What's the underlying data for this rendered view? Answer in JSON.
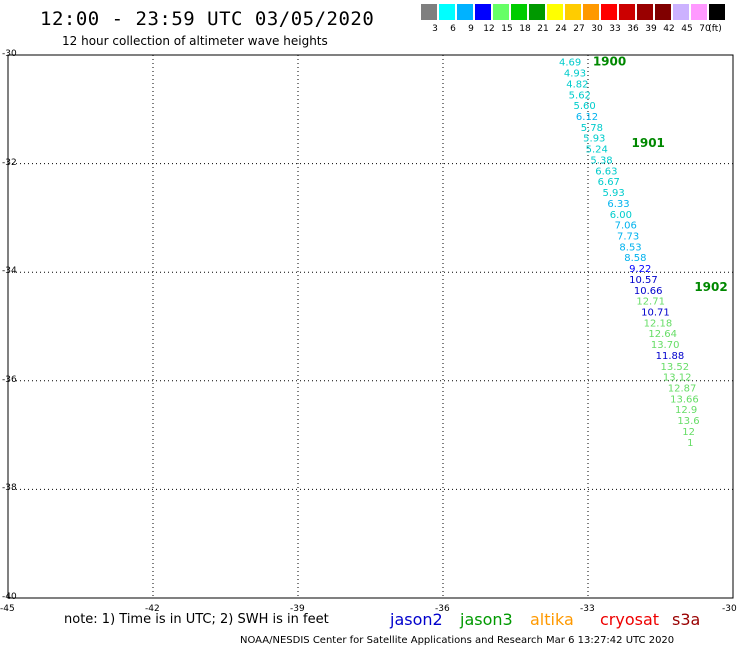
{
  "header": {
    "title": "12:00 - 23:59 UTC 03/05/2020",
    "subtitle": "12 hour collection of altimeter wave heights"
  },
  "scale": {
    "unit": "(ft)",
    "bins": [
      {
        "label": "3",
        "color": "#7f7f7f"
      },
      {
        "label": "6",
        "color": "#00ffff"
      },
      {
        "label": "9",
        "color": "#00b2ff"
      },
      {
        "label": "12",
        "color": "#0000ff"
      },
      {
        "label": "15",
        "color": "#66ff66"
      },
      {
        "label": "18",
        "color": "#00cc00"
      },
      {
        "label": "21",
        "color": "#009900"
      },
      {
        "label": "24",
        "color": "#ffff00"
      },
      {
        "label": "27",
        "color": "#ffcc00"
      },
      {
        "label": "30",
        "color": "#ff9900"
      },
      {
        "label": "33",
        "color": "#ff0000"
      },
      {
        "label": "36",
        "color": "#cc0000"
      },
      {
        "label": "39",
        "color": "#990000"
      },
      {
        "label": "42",
        "color": "#800000"
      },
      {
        "label": "45",
        "color": "#ccb2ff"
      },
      {
        "label": "70",
        "color": "#ff99ff"
      },
      {
        "label": "",
        "color": "#000000"
      }
    ]
  },
  "map": {
    "lat_labels": [
      "-30",
      "-32",
      "-34",
      "-36",
      "-38",
      "-40"
    ],
    "lon_labels": [
      "-45",
      "-42",
      "-39",
      "-36",
      "-33",
      "-30"
    ],
    "time_labels": [
      {
        "label": "1900",
        "lon": -32.9,
        "lat": -30.05
      },
      {
        "label": "1901",
        "lon": -32.1,
        "lat": -31.55
      },
      {
        "label": "1902",
        "lon": -30.8,
        "lat": -34.2
      }
    ],
    "observations": [
      {
        "v": "4.69",
        "lon": -33.6,
        "lat": -30.05,
        "color": "#00cccc"
      },
      {
        "v": "4.93",
        "lon": -33.5,
        "lat": -30.25,
        "color": "#00cccc"
      },
      {
        "v": "4.82",
        "lon": -33.45,
        "lat": -30.45,
        "color": "#00cccc"
      },
      {
        "v": "5.62",
        "lon": -33.4,
        "lat": -30.65,
        "color": "#00cccc"
      },
      {
        "v": "5.60",
        "lon": -33.3,
        "lat": -30.85,
        "color": "#00cccc"
      },
      {
        "v": "6.12",
        "lon": -33.25,
        "lat": -31.05,
        "color": "#00b2ee"
      },
      {
        "v": "5.78",
        "lon": -33.15,
        "lat": -31.25,
        "color": "#00cccc"
      },
      {
        "v": "5.93",
        "lon": -33.1,
        "lat": -31.45,
        "color": "#00cccc"
      },
      {
        "v": "5.24",
        "lon": -33.05,
        "lat": -31.65,
        "color": "#00cccc"
      },
      {
        "v": "5.38",
        "lon": -32.95,
        "lat": -31.85,
        "color": "#00cccc"
      },
      {
        "v": "6.63",
        "lon": -32.85,
        "lat": -32.05,
        "color": "#00cccc"
      },
      {
        "v": "6.67",
        "lon": -32.8,
        "lat": -32.25,
        "color": "#00cccc"
      },
      {
        "v": "5.93",
        "lon": -32.7,
        "lat": -32.45,
        "color": "#00cccc"
      },
      {
        "v": "6.33",
        "lon": -32.6,
        "lat": -32.65,
        "color": "#00b2ee"
      },
      {
        "v": "6.00",
        "lon": -32.55,
        "lat": -32.85,
        "color": "#00cccc"
      },
      {
        "v": "7.06",
        "lon": -32.45,
        "lat": -33.05,
        "color": "#00b2ee"
      },
      {
        "v": "7.73",
        "lon": -32.4,
        "lat": -33.25,
        "color": "#00b2ee"
      },
      {
        "v": "8.53",
        "lon": -32.35,
        "lat": -33.45,
        "color": "#00b2ee"
      },
      {
        "v": "8.58",
        "lon": -32.25,
        "lat": -33.65,
        "color": "#00b2ee"
      },
      {
        "v": "9.22",
        "lon": -32.15,
        "lat": -33.85,
        "color": "#0000ff"
      },
      {
        "v": "10.57",
        "lon": -32.15,
        "lat": -34.05,
        "color": "#0000cc"
      },
      {
        "v": "10.66",
        "lon": -32.05,
        "lat": -34.25,
        "color": "#0000cc"
      },
      {
        "v": "12.71",
        "lon": -32.0,
        "lat": -34.45,
        "color": "#66dd66"
      },
      {
        "v": "10.71",
        "lon": -31.9,
        "lat": -34.65,
        "color": "#0000cc"
      },
      {
        "v": "12.18",
        "lon": -31.85,
        "lat": -34.85,
        "color": "#66dd66"
      },
      {
        "v": "12.64",
        "lon": -31.75,
        "lat": -35.05,
        "color": "#66dd66"
      },
      {
        "v": "13.70",
        "lon": -31.7,
        "lat": -35.25,
        "color": "#66dd66"
      },
      {
        "v": "11.88",
        "lon": -31.6,
        "lat": -35.45,
        "color": "#0000cc"
      },
      {
        "v": "13.52",
        "lon": -31.5,
        "lat": -35.65,
        "color": "#66dd66"
      },
      {
        "v": "13.12",
        "lon": -31.45,
        "lat": -35.85,
        "color": "#66dd66"
      },
      {
        "v": "12.87",
        "lon": -31.35,
        "lat": -36.05,
        "color": "#66dd66"
      },
      {
        "v": "13.66",
        "lon": -31.3,
        "lat": -36.25,
        "color": "#66dd66"
      },
      {
        "v": "12.9",
        "lon": -31.2,
        "lat": -36.45,
        "color": "#66dd66"
      },
      {
        "v": "13.6",
        "lon": -31.15,
        "lat": -36.65,
        "color": "#66dd66"
      },
      {
        "v": "12",
        "lon": -31.05,
        "lat": -36.85,
        "color": "#66dd66"
      },
      {
        "v": "1",
        "lon": -30.95,
        "lat": -37.05,
        "color": "#66dd66"
      }
    ]
  },
  "footer": {
    "note": "note: 1) Time is in UTC; 2) SWH is in feet",
    "satellites": [
      {
        "name": "jason2",
        "color": "#0000cc"
      },
      {
        "name": "jason3",
        "color": "#009900"
      },
      {
        "name": "altika",
        "color": "#ff9900"
      },
      {
        "name": "cryosat",
        "color": "#ee0000"
      },
      {
        "name": "s3a",
        "color": "#990000"
      }
    ],
    "credit": "NOAA/NESDIS Center for Satellite Applications and Research   Mar  6 13:27:42 UTC 2020"
  }
}
